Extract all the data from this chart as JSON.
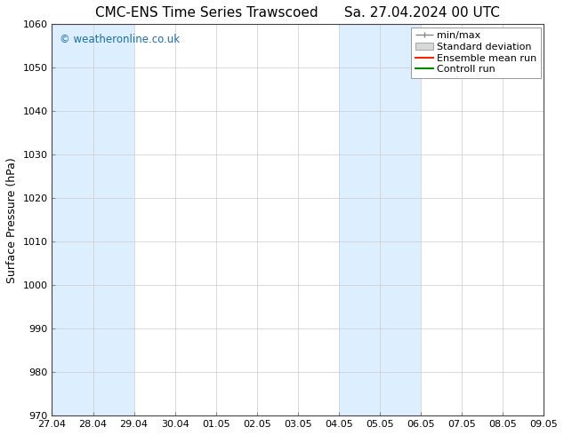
{
  "title": "CMC-ENS Time Series Trawscoed",
  "subtitle": "Sa. 27.04.2024 00 UTC",
  "ylabel": "Surface Pressure (hPa)",
  "ylim": [
    970,
    1060
  ],
  "yticks": [
    970,
    980,
    990,
    1000,
    1010,
    1020,
    1030,
    1040,
    1050,
    1060
  ],
  "xtick_labels": [
    "27.04",
    "28.04",
    "29.04",
    "30.04",
    "01.05",
    "02.05",
    "03.05",
    "04.05",
    "05.05",
    "06.05",
    "07.05",
    "08.05",
    "09.05"
  ],
  "shaded_regions": [
    {
      "xstart": 0,
      "xend": 2,
      "color": "#ddeeff"
    },
    {
      "xstart": 7,
      "xend": 9,
      "color": "#ddeeff"
    }
  ],
  "watermark_text": "© weatheronline.co.uk",
  "watermark_color": "#1a6faa",
  "legend_items": [
    {
      "label": "min/max",
      "color": "#aaaaaa",
      "style": "minmax"
    },
    {
      "label": "Standard deviation",
      "color": "#cccccc",
      "style": "stddev"
    },
    {
      "label": "Ensemble mean run",
      "color": "#ff0000",
      "style": "line"
    },
    {
      "label": "Controll run",
      "color": "#008000",
      "style": "line"
    }
  ],
  "background_color": "#ffffff",
  "plot_bg_color": "#ffffff",
  "grid_color": "#cccccc",
  "title_fontsize": 11,
  "tick_labelsize": 8,
  "ylabel_fontsize": 9,
  "legend_fontsize": 8
}
